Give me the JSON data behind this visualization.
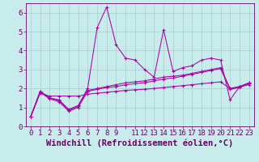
{
  "xlabel": "Windchill (Refroidissement éolien,°C)",
  "ylabel": "",
  "bg_color": "#c8ecec",
  "line_color": "#aa00aa",
  "grid_color": "#aacccc",
  "xlim": [
    -0.5,
    23.5
  ],
  "ylim": [
    0,
    6.5
  ],
  "xtick_labels": [
    "0",
    "1",
    "2",
    "3",
    "4",
    "5",
    "6",
    "7",
    "8",
    "9",
    "",
    "11",
    "12",
    "13",
    "14",
    "15",
    "16",
    "17",
    "18",
    "19",
    "20",
    "21",
    "22",
    "23"
  ],
  "yticks": [
    0,
    1,
    2,
    3,
    4,
    5,
    6
  ],
  "series": [
    [
      0.5,
      1.85,
      1.5,
      1.4,
      0.9,
      1.1,
      2.0,
      5.2,
      6.3,
      4.3,
      3.6,
      3.5,
      3.0,
      2.6,
      5.1,
      2.9,
      3.1,
      3.2,
      3.5,
      3.6,
      3.5,
      1.4,
      2.1,
      2.3
    ],
    [
      0.5,
      1.85,
      1.5,
      1.35,
      0.85,
      1.05,
      1.9,
      2.0,
      2.1,
      2.2,
      2.3,
      2.35,
      2.4,
      2.5,
      2.6,
      2.65,
      2.7,
      2.8,
      2.9,
      3.0,
      3.1,
      2.0,
      2.1,
      2.3
    ],
    [
      0.5,
      1.8,
      1.45,
      1.3,
      0.8,
      1.0,
      1.85,
      1.95,
      2.05,
      2.1,
      2.2,
      2.25,
      2.3,
      2.4,
      2.5,
      2.55,
      2.65,
      2.75,
      2.85,
      2.95,
      3.05,
      1.95,
      2.05,
      2.25
    ],
    [
      0.5,
      1.75,
      1.6,
      1.6,
      1.6,
      1.6,
      1.7,
      1.75,
      1.8,
      1.85,
      1.9,
      1.93,
      1.96,
      2.0,
      2.05,
      2.1,
      2.15,
      2.2,
      2.25,
      2.3,
      2.35,
      2.0,
      2.1,
      2.2
    ]
  ],
  "font_color": "#660066",
  "tick_font_size": 6.5,
  "xlabel_font_size": 7.5
}
